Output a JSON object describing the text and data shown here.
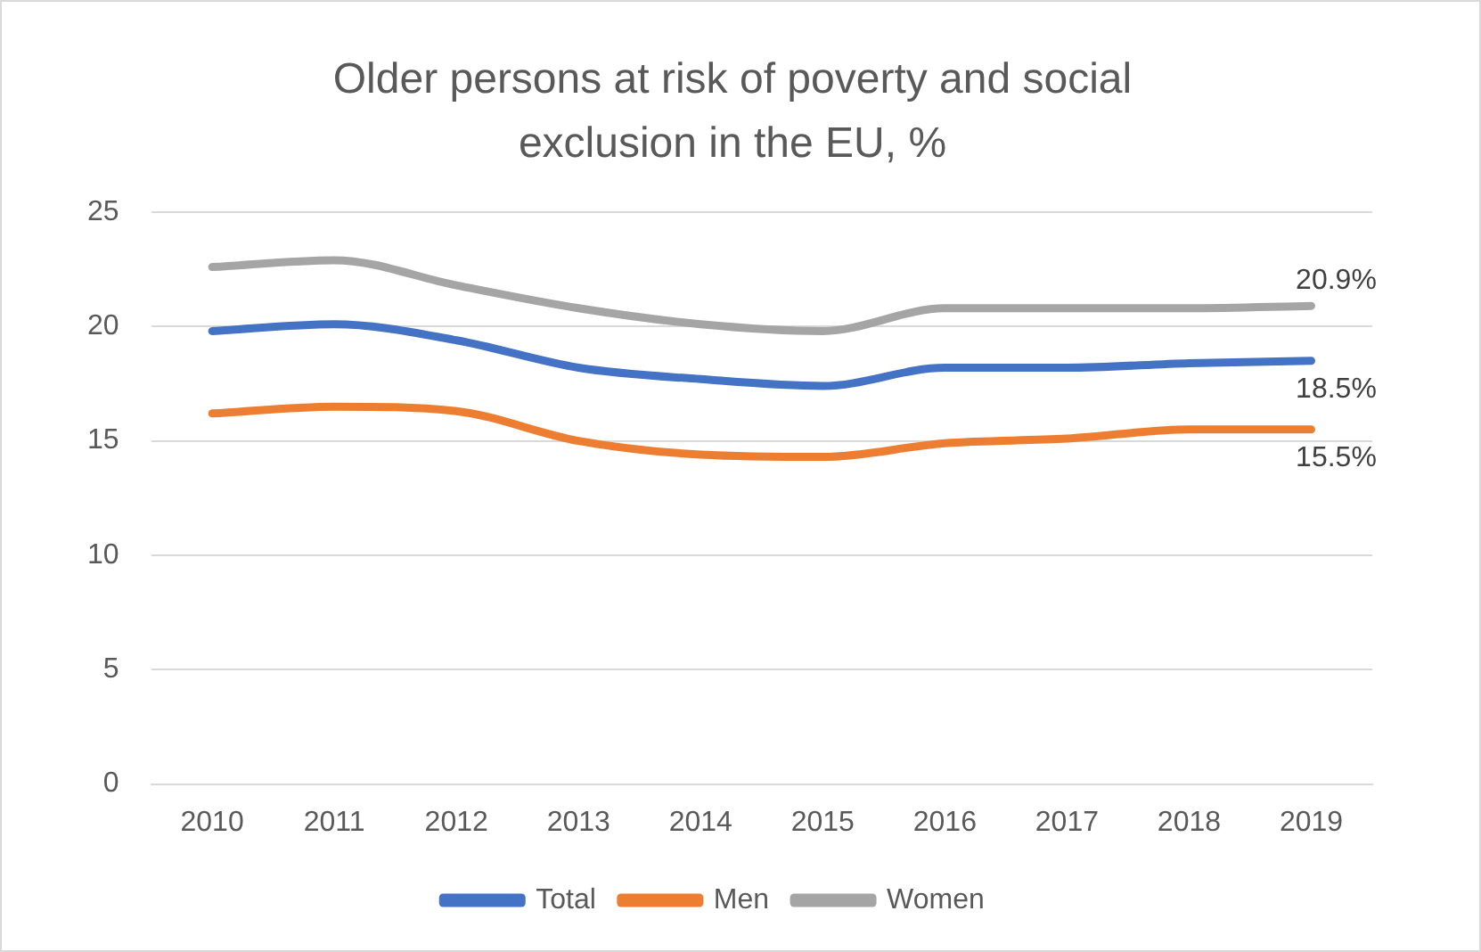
{
  "chart_data": {
    "type": "line",
    "title": "Older persons at risk of poverty and social exclusion in the EU, %",
    "categories": [
      "2010",
      "2011",
      "2012",
      "2013",
      "2014",
      "2015",
      "2016",
      "2017",
      "2018",
      "2019"
    ],
    "series": [
      {
        "name": "Total",
        "color": "#4472c4",
        "values": [
          19.8,
          20.1,
          19.4,
          18.2,
          17.7,
          17.4,
          18.2,
          18.2,
          18.4,
          18.5
        ],
        "value_labels": [
          null,
          null,
          null,
          null,
          null,
          null,
          null,
          null,
          null,
          "18.5%"
        ]
      },
      {
        "name": "Men",
        "color": "#ed7d31",
        "values": [
          16.2,
          16.5,
          16.3,
          15.0,
          14.4,
          14.3,
          14.9,
          15.1,
          15.5,
          15.5
        ],
        "value_labels": [
          null,
          null,
          null,
          null,
          null,
          null,
          null,
          null,
          null,
          "15.5%"
        ]
      },
      {
        "name": "Women",
        "color": "#a5a5a5",
        "values": [
          22.6,
          22.9,
          21.8,
          20.8,
          20.1,
          19.8,
          20.8,
          20.8,
          20.8,
          20.9
        ],
        "value_labels": [
          null,
          null,
          null,
          null,
          null,
          null,
          null,
          null,
          null,
          "20.9%"
        ]
      }
    ],
    "ylim": [
      0,
      25
    ],
    "yticks": [
      0,
      5,
      10,
      15,
      20,
      25
    ],
    "grid": "y",
    "legend": "bottom",
    "marker": "none",
    "line_style": "solid"
  }
}
